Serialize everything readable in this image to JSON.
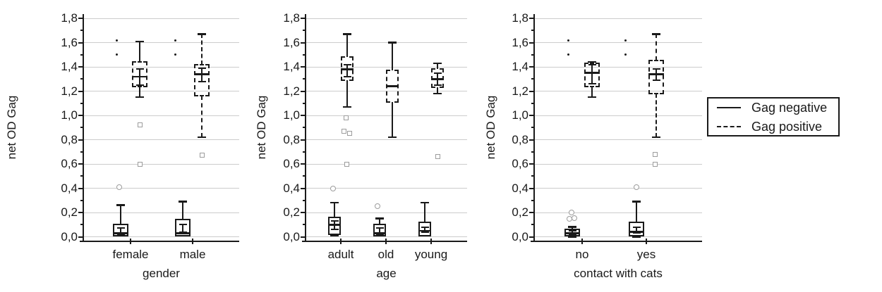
{
  "figure": {
    "background": "#ffffff"
  },
  "legend": {
    "items": [
      {
        "label": "Gag negative",
        "line_style": "solid"
      },
      {
        "label": "Gag positive",
        "line_style": "dashed"
      }
    ]
  },
  "chart_data": {
    "type": "boxplot",
    "title": "",
    "ylabel": "net OD Gag",
    "ylim": [
      0.0,
      1.8
    ],
    "ytick_step": 0.2,
    "ytick_labels": [
      "0,0",
      "0,2",
      "0,4",
      "0,6",
      "0,8",
      "1,0",
      "1,2",
      "1,4",
      "1,6",
      "1,8"
    ],
    "grid": "horizontal",
    "legend_position": "right",
    "colors": {
      "box_line": "#1a1a1a",
      "grid": "#cccccc",
      "outlier_marker": "#9c9c9c"
    },
    "series": [
      {
        "name": "Gag negative",
        "style": "solid"
      },
      {
        "name": "Gag positive",
        "style": "dashed"
      }
    ],
    "panels": [
      {
        "xlabel": "gender",
        "categories": [
          "female",
          "male"
        ],
        "groups": [
          {
            "category": "female",
            "series": "Gag negative",
            "style": "solid",
            "whisker_dashed": false,
            "whisker_low": 0.01,
            "q1": 0.01,
            "median": 0.03,
            "q3": 0.1,
            "whisker_high": 0.26,
            "inner_low": 0.02,
            "inner_high": 0.07,
            "circles": [
              {
                "v": 0.41,
                "dx": -2
              }
            ],
            "squares": [],
            "extreme_dots": [
              {
                "v": 1.62,
                "dx": -6
              },
              {
                "v": 1.5,
                "dx": -6
              }
            ]
          },
          {
            "category": "female",
            "series": "Gag positive",
            "style": "dashed",
            "whisker_dashed": false,
            "whisker_low": 1.15,
            "q1": 1.24,
            "median": 1.32,
            "q3": 1.44,
            "whisker_high": 1.61,
            "inner_low": 1.25,
            "inner_high": 1.38,
            "circles": [],
            "squares": [
              {
                "v": 0.92,
                "dx": 0
              },
              {
                "v": 0.6,
                "dx": 0
              }
            ],
            "extreme_dots": []
          },
          {
            "category": "male",
            "series": "Gag negative",
            "style": "solid",
            "whisker_dashed": false,
            "whisker_low": 0.01,
            "q1": 0.01,
            "median": 0.03,
            "q3": 0.14,
            "whisker_high": 0.29,
            "inner_low": 0.04,
            "inner_high": 0.1,
            "circles": [],
            "squares": [],
            "extreme_dots": [
              {
                "v": 1.62,
                "dx": -11
              },
              {
                "v": 1.5,
                "dx": -11
              }
            ]
          },
          {
            "category": "male",
            "series": "Gag positive",
            "style": "dashed",
            "whisker_dashed": true,
            "whisker_low": 0.82,
            "q1": 1.16,
            "median": 1.34,
            "q3": 1.42,
            "whisker_high": 1.67,
            "inner_low": 1.28,
            "inner_high": 1.39,
            "circles": [],
            "squares": [
              {
                "v": 0.67,
                "dx": 0
              }
            ],
            "extreme_dots": []
          }
        ]
      },
      {
        "xlabel": "age",
        "categories": [
          "adult",
          "old",
          "young"
        ],
        "groups": [
          {
            "category": "adult",
            "series": "Gag negative",
            "style": "solid",
            "whisker_dashed": false,
            "whisker_low": 0.01,
            "q1": 0.02,
            "median": 0.1,
            "q3": 0.16,
            "whisker_high": 0.28,
            "inner_low": 0.06,
            "inner_high": 0.13,
            "circles": [
              {
                "v": 0.4,
                "dx": -2
              }
            ],
            "squares": [],
            "extreme_dots": []
          },
          {
            "category": "adult",
            "series": "Gag positive",
            "style": "dashed",
            "whisker_dashed": false,
            "whisker_low": 1.07,
            "q1": 1.29,
            "median": 1.38,
            "q3": 1.48,
            "whisker_high": 1.67,
            "inner_low": 1.32,
            "inner_high": 1.42,
            "circles": [],
            "squares": [
              {
                "v": 0.98,
                "dx": -2
              },
              {
                "v": 0.87,
                "dx": -5
              },
              {
                "v": 0.85,
                "dx": 3
              },
              {
                "v": 0.6,
                "dx": -1
              }
            ],
            "extreme_dots": []
          },
          {
            "category": "old",
            "series": "Gag negative",
            "style": "solid",
            "whisker_dashed": false,
            "whisker_low": 0.01,
            "q1": 0.01,
            "median": 0.03,
            "q3": 0.1,
            "whisker_high": 0.15,
            "inner_low": 0.02,
            "inner_high": 0.07,
            "circles": [
              {
                "v": 0.25,
                "dx": -3
              }
            ],
            "squares": [],
            "extreme_dots": []
          },
          {
            "category": "old",
            "series": "Gag positive",
            "style": "dashed",
            "whisker_dashed": false,
            "whisker_low": 0.82,
            "q1": 1.11,
            "median": 1.24,
            "q3": 1.37,
            "whisker_high": 1.6,
            "inner_low": null,
            "inner_high": null,
            "circles": [],
            "squares": [],
            "extreme_dots": []
          },
          {
            "category": "young",
            "series": "Gag negative",
            "style": "solid",
            "whisker_dashed": false,
            "whisker_low": 0.01,
            "q1": 0.01,
            "median": 0.05,
            "q3": 0.12,
            "whisker_high": 0.28,
            "inner_low": 0.04,
            "inner_high": 0.08,
            "circles": [],
            "squares": [],
            "extreme_dots": []
          },
          {
            "category": "young",
            "series": "Gag positive",
            "style": "dashed",
            "whisker_dashed": false,
            "whisker_low": 1.18,
            "q1": 1.23,
            "median": 1.3,
            "q3": 1.38,
            "whisker_high": 1.43,
            "inner_low": 1.25,
            "inner_high": 1.35,
            "circles": [],
            "squares": [
              {
                "v": 0.66,
                "dx": 0
              }
            ],
            "extreme_dots": []
          }
        ]
      },
      {
        "xlabel": "contact with cats",
        "categories": [
          "no",
          "yes"
        ],
        "groups": [
          {
            "category": "no",
            "series": "Gag negative",
            "style": "solid",
            "whisker_dashed": false,
            "whisker_low": 0.0,
            "q1": 0.01,
            "median": 0.03,
            "q3": 0.06,
            "whisker_high": 0.08,
            "inner_low": 0.02,
            "inner_high": 0.05,
            "circles": [
              {
                "v": 0.2,
                "dx": -1
              },
              {
                "v": 0.15,
                "dx": -4
              },
              {
                "v": 0.155,
                "dx": 3
              }
            ],
            "squares": [],
            "extreme_dots": [
              {
                "v": 1.62,
                "dx": -6
              },
              {
                "v": 1.5,
                "dx": -6
              }
            ]
          },
          {
            "category": "no",
            "series": "Gag positive",
            "style": "dashed",
            "whisker_dashed": false,
            "whisker_low": 1.15,
            "q1": 1.24,
            "median": 1.35,
            "q3": 1.43,
            "whisker_high": 1.44,
            "inner_low": 1.26,
            "inner_high": 1.42,
            "circles": [],
            "squares": [],
            "extreme_dots": []
          },
          {
            "category": "yes",
            "series": "Gag negative",
            "style": "solid",
            "whisker_dashed": false,
            "whisker_low": 0.0,
            "q1": 0.01,
            "median": 0.04,
            "q3": 0.12,
            "whisker_high": 0.29,
            "inner_low": 0.03,
            "inner_high": 0.08,
            "circles": [
              {
                "v": 0.41,
                "dx": 0
              }
            ],
            "squares": [],
            "extreme_dots": [
              {
                "v": 1.62,
                "dx": -16
              },
              {
                "v": 1.5,
                "dx": -16
              }
            ]
          },
          {
            "category": "yes",
            "series": "Gag positive",
            "style": "dashed",
            "whisker_dashed": true,
            "whisker_low": 0.82,
            "q1": 1.18,
            "median": 1.34,
            "q3": 1.45,
            "whisker_high": 1.67,
            "inner_low": 1.29,
            "inner_high": 1.38,
            "circles": [],
            "squares": [
              {
                "v": 0.68,
                "dx": -2
              },
              {
                "v": 0.6,
                "dx": -2
              }
            ],
            "extreme_dots": []
          }
        ]
      }
    ]
  }
}
